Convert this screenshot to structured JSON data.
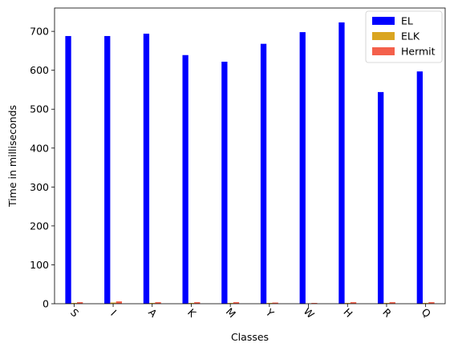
{
  "chart_data": {
    "type": "bar",
    "title": "",
    "xlabel": "Classes",
    "ylabel": "Time in milliseconds",
    "categories": [
      "S",
      "I",
      "A",
      "K",
      "M",
      "Y",
      "W",
      "H",
      "R",
      "Q"
    ],
    "series": [
      {
        "name": "EL",
        "color": "#0000ff",
        "values": [
          688,
          688,
          694,
          639,
          622,
          668,
          698,
          723,
          544,
          597
        ]
      },
      {
        "name": "ELK",
        "color": "#daa520",
        "values": [
          2,
          3,
          2,
          2,
          2,
          2,
          1,
          2,
          2,
          2
        ]
      },
      {
        "name": "Hermit",
        "color": "#f4604b",
        "values": [
          4,
          6,
          4,
          4,
          4,
          3,
          2,
          4,
          4,
          4
        ]
      }
    ],
    "ylim": [
      0,
      760
    ],
    "yticks": [
      0,
      100,
      200,
      300,
      400,
      500,
      600,
      700
    ],
    "xtick_rotation": 45,
    "grid": false,
    "legend_position": "top-right"
  }
}
